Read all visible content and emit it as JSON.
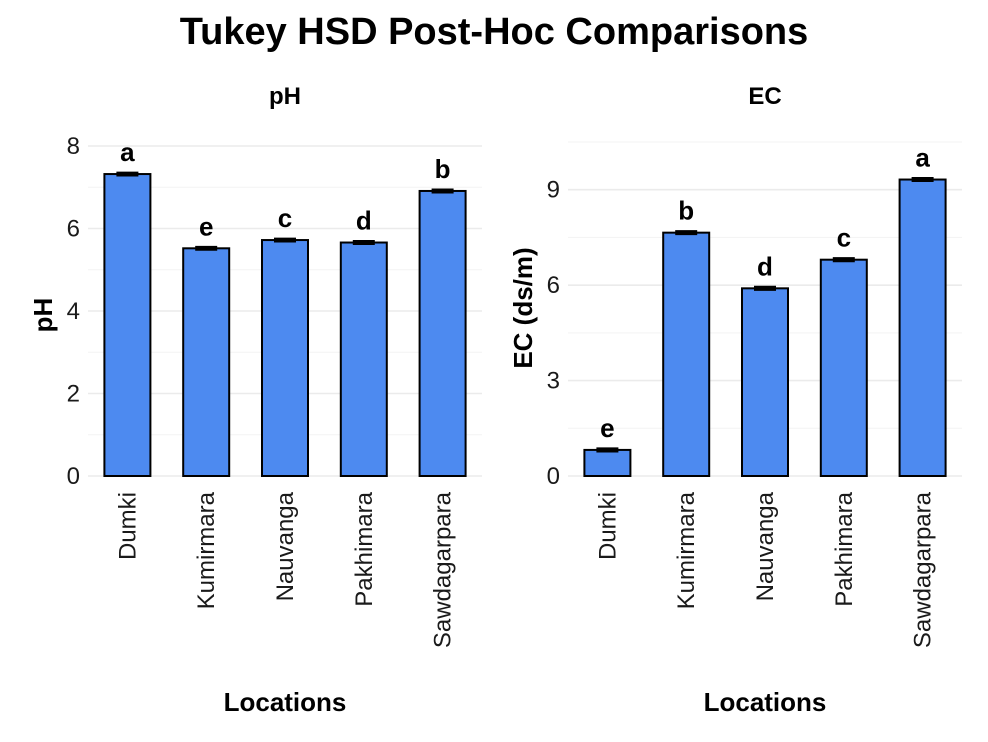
{
  "title": "Tukey HSD Post-Hoc Comparisons",
  "bar_color": "#4d8af0",
  "chart_data": [
    {
      "type": "bar",
      "title": "pH",
      "xlabel": "Locations",
      "ylabel": "pH",
      "ylim": [
        0,
        8
      ],
      "yticks": [
        0,
        2,
        4,
        6,
        8
      ],
      "categories": [
        "Dumki",
        "Kumirmara",
        "Nauvanga",
        "Pakhimara",
        "Sawdagarpara"
      ],
      "values": [
        7.32,
        5.52,
        5.72,
        5.66,
        6.91
      ],
      "errors": [
        0.03,
        0.03,
        0.03,
        0.03,
        0.03
      ],
      "letters": [
        "a",
        "e",
        "c",
        "d",
        "b"
      ],
      "grid": true
    },
    {
      "type": "bar",
      "title": "EC",
      "xlabel": "Locations",
      "ylabel": "EC (ds/m)",
      "ylim": [
        0,
        10.5
      ],
      "yticks": [
        0,
        3,
        6,
        9
      ],
      "categories": [
        "Dumki",
        "Kumirmara",
        "Nauvanga",
        "Pakhimara",
        "Sawdagarpara"
      ],
      "values": [
        0.82,
        7.65,
        5.9,
        6.8,
        9.32
      ],
      "errors": [
        0.04,
        0.04,
        0.04,
        0.04,
        0.04
      ],
      "letters": [
        "e",
        "b",
        "d",
        "c",
        "a"
      ],
      "grid": true
    }
  ]
}
